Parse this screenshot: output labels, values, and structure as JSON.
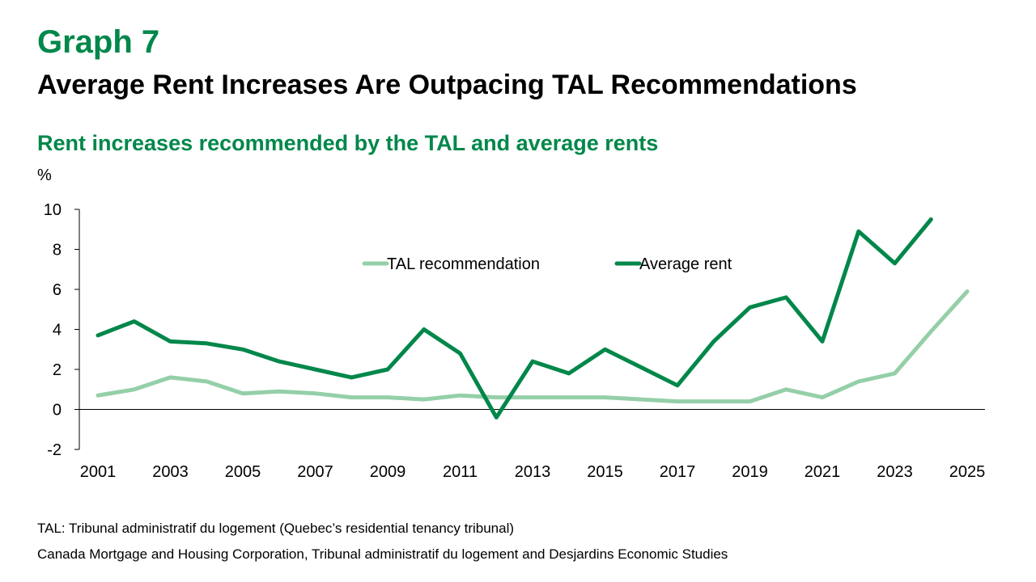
{
  "header": {
    "graph_number": "Graph 7",
    "headline": "Average Rent Increases Are Outpacing TAL Recommendations",
    "subtitle": "Rent increases recommended by the TAL and average rents"
  },
  "footer": {
    "note": "TAL: Tribunal administratif du logement (Quebec’s residential tenancy tribunal)",
    "source": "Canada Mortgage and Housing Corporation, Tribunal administratif du logement and Desjardins Economic Studies"
  },
  "chart_data": {
    "type": "line",
    "ylabel": "%",
    "ylim": [
      -2,
      10
    ],
    "yticks": [
      -2,
      0,
      2,
      4,
      6,
      8,
      10
    ],
    "xlim": [
      2001,
      2025
    ],
    "xticks": [
      2001,
      2003,
      2005,
      2007,
      2009,
      2011,
      2013,
      2015,
      2017,
      2019,
      2021,
      2023,
      2025
    ],
    "grid": false,
    "legend_position": "top-center",
    "series": [
      {
        "name": "TAL recommendation",
        "color": "#94cfa8",
        "x": [
          2001,
          2002,
          2003,
          2004,
          2005,
          2006,
          2007,
          2008,
          2009,
          2010,
          2011,
          2012,
          2013,
          2014,
          2015,
          2016,
          2017,
          2018,
          2019,
          2020,
          2021,
          2022,
          2023,
          2024,
          2025
        ],
        "values": [
          0.7,
          1.0,
          1.6,
          1.4,
          0.8,
          0.9,
          0.8,
          0.6,
          0.6,
          0.5,
          0.7,
          0.6,
          0.6,
          0.6,
          0.6,
          0.5,
          0.4,
          0.4,
          0.4,
          1.0,
          0.6,
          1.4,
          1.8,
          3.9,
          5.9
        ]
      },
      {
        "name": "Average rent",
        "color": "#00874a",
        "x": [
          2001,
          2002,
          2003,
          2004,
          2005,
          2006,
          2007,
          2008,
          2009,
          2010,
          2011,
          2012,
          2013,
          2014,
          2015,
          2016,
          2017,
          2018,
          2019,
          2020,
          2021,
          2022,
          2023,
          2024
        ],
        "values": [
          3.7,
          4.4,
          3.4,
          3.3,
          3.0,
          2.4,
          2.0,
          1.6,
          2.0,
          4.0,
          2.8,
          -0.4,
          2.4,
          1.8,
          3.0,
          2.1,
          1.2,
          3.4,
          5.1,
          5.6,
          3.4,
          8.9,
          7.3,
          9.5
        ]
      }
    ]
  }
}
